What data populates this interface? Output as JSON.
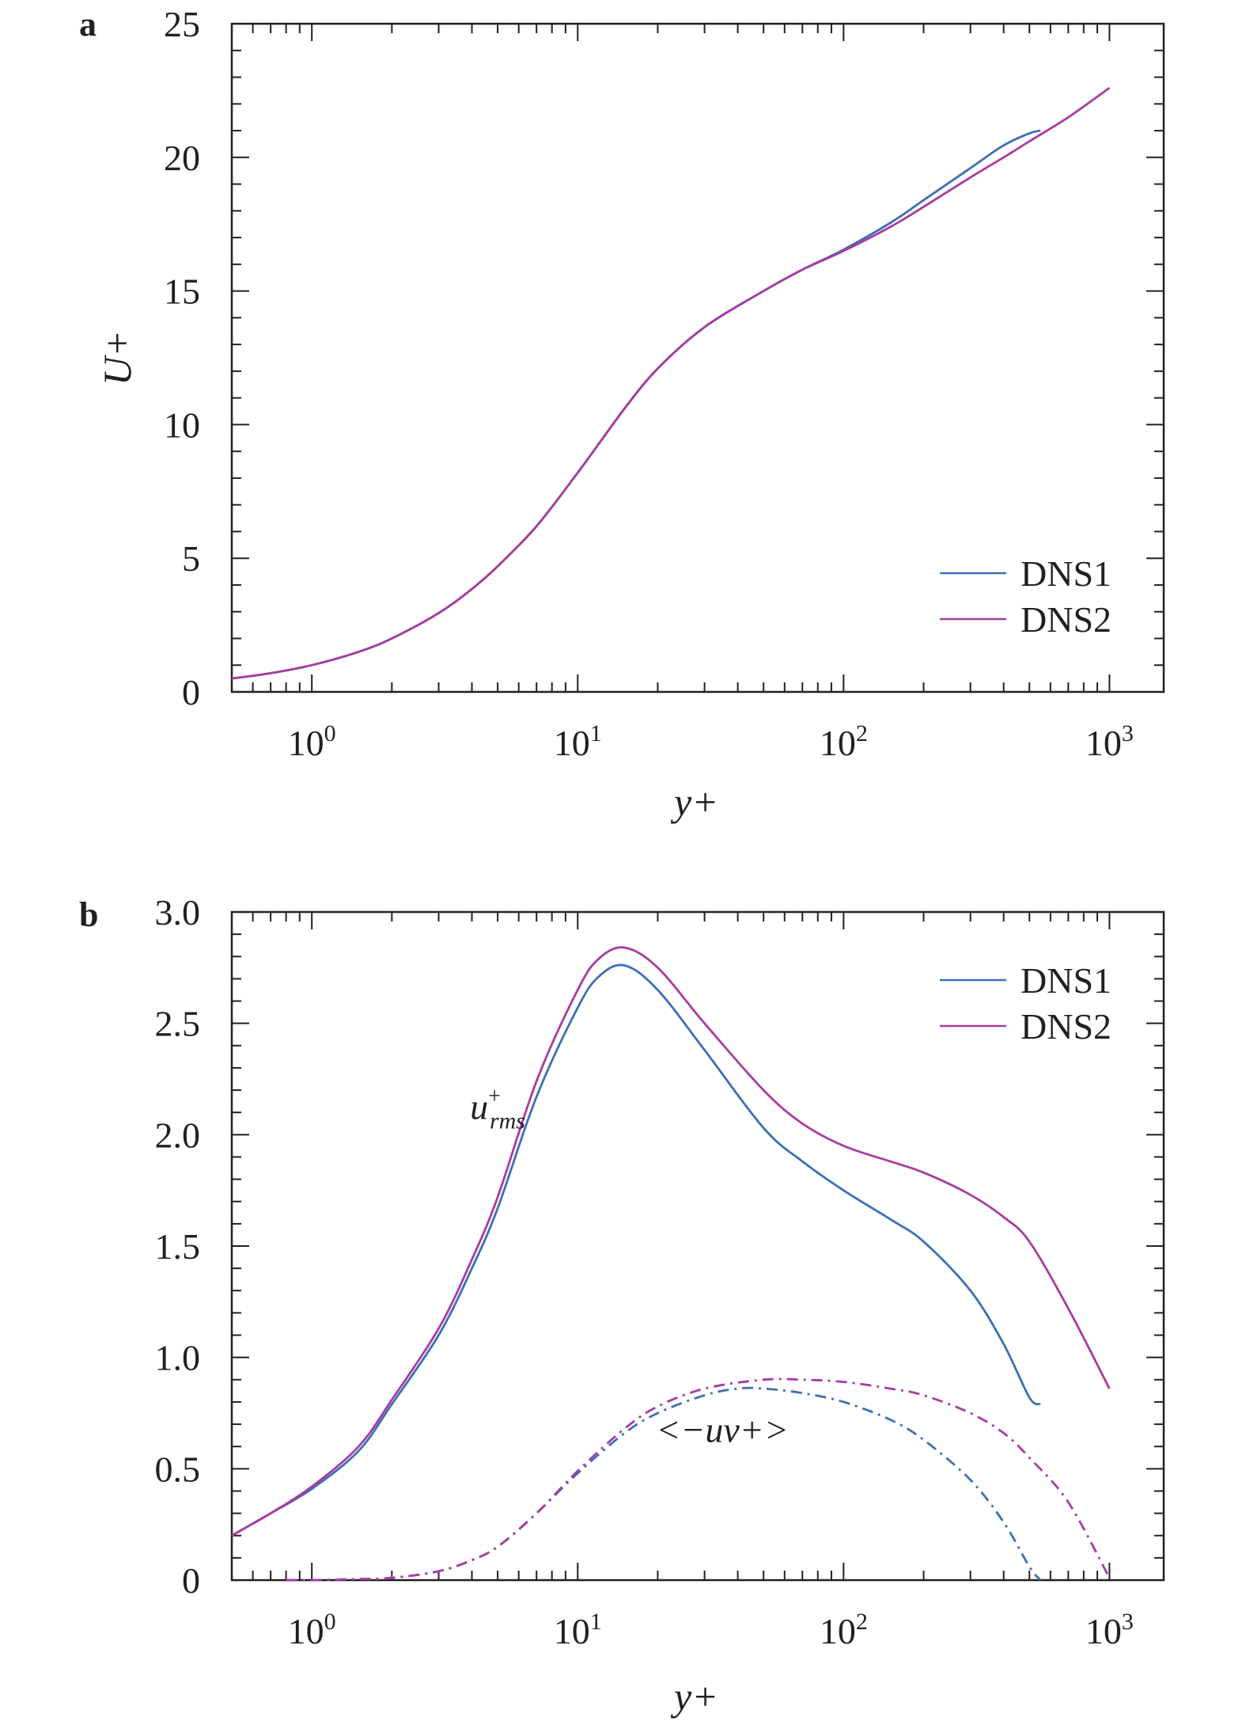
{
  "chart_data": [
    {
      "panel": "a",
      "type": "line",
      "ylabel": "U+",
      "xlabel": "y+",
      "xscale": "log",
      "xlim": [
        0.5,
        1600
      ],
      "ylim": [
        0,
        25
      ],
      "xticks": [
        {
          "value": 1,
          "base": "10",
          "exp": "0"
        },
        {
          "value": 10,
          "base": "10",
          "exp": "1"
        },
        {
          "value": 100,
          "base": "10",
          "exp": "2"
        },
        {
          "value": 1000,
          "base": "10",
          "exp": "3"
        }
      ],
      "yticks": [
        0,
        5,
        10,
        15,
        20,
        25
      ],
      "ytick_labels": [
        "0",
        "5",
        "10",
        "15",
        "20",
        "25"
      ],
      "legend": {
        "position": "lower-right"
      },
      "series": [
        {
          "name": "DNS1",
          "color": "#3d6fb4",
          "style": "solid",
          "x": [
            0.5,
            0.7,
            1,
            1.5,
            2,
            3,
            4,
            5,
            7,
            10,
            15,
            20,
            30,
            50,
            70,
            100,
            150,
            200,
            300,
            400,
            500,
            550
          ],
          "y": [
            0.5,
            0.7,
            1.0,
            1.5,
            2.0,
            2.95,
            3.85,
            4.7,
            6.2,
            8.2,
            10.6,
            12.1,
            13.65,
            15.0,
            15.8,
            16.55,
            17.55,
            18.4,
            19.6,
            20.45,
            20.9,
            21.0
          ]
        },
        {
          "name": "DNS2",
          "color": "#a83ba0",
          "style": "solid",
          "x": [
            0.5,
            0.7,
            1,
            1.5,
            2,
            3,
            4,
            5,
            7,
            10,
            15,
            20,
            30,
            50,
            70,
            100,
            150,
            200,
            300,
            400,
            500,
            700,
            1000
          ],
          "y": [
            0.5,
            0.7,
            1.0,
            1.5,
            2.0,
            2.95,
            3.85,
            4.7,
            6.2,
            8.2,
            10.6,
            12.1,
            13.65,
            15.0,
            15.8,
            16.5,
            17.4,
            18.15,
            19.25,
            20.0,
            20.6,
            21.5,
            22.6
          ]
        }
      ]
    },
    {
      "panel": "b",
      "type": "line",
      "xlabel": "y+",
      "ylabel": "",
      "xscale": "log",
      "xlim": [
        0.5,
        1600
      ],
      "ylim": [
        0,
        3.0
      ],
      "xticks": [
        {
          "value": 1,
          "base": "10",
          "exp": "0"
        },
        {
          "value": 10,
          "base": "10",
          "exp": "1"
        },
        {
          "value": 100,
          "base": "10",
          "exp": "2"
        },
        {
          "value": 1000,
          "base": "10",
          "exp": "3"
        }
      ],
      "yticks": [
        0,
        0.5,
        1.0,
        1.5,
        2.0,
        2.5,
        3.0
      ],
      "ytick_labels": [
        "0",
        "0.5",
        "1.0",
        "1.5",
        "2.0",
        "2.5",
        "3.0"
      ],
      "legend": {
        "position": "top-right"
      },
      "annotations": [
        {
          "text": "u",
          "superscript": "+",
          "subscript": "rms",
          "x": 5.0,
          "y": 2.07
        },
        {
          "text": "<−uv+>",
          "x": 35,
          "y": 0.62
        }
      ],
      "series": [
        {
          "name": "DNS1",
          "color": "#3d6fb4",
          "style": "solid",
          "x": [
            0.5,
            0.7,
            1,
            1.5,
            2,
            3,
            4,
            5,
            7,
            10,
            12,
            15,
            20,
            30,
            50,
            70,
            100,
            150,
            200,
            300,
            400,
            500,
            550
          ],
          "y": [
            0.2,
            0.3,
            0.41,
            0.58,
            0.79,
            1.1,
            1.4,
            1.67,
            2.17,
            2.57,
            2.71,
            2.76,
            2.65,
            2.38,
            2.03,
            1.88,
            1.75,
            1.62,
            1.52,
            1.3,
            1.06,
            0.82,
            0.79
          ]
        },
        {
          "name": "DNS2",
          "color": "#a83ba0",
          "style": "solid",
          "x": [
            0.5,
            0.7,
            1,
            1.5,
            2,
            3,
            4,
            5,
            7,
            10,
            12,
            15,
            20,
            30,
            50,
            70,
            100,
            150,
            200,
            300,
            400,
            500,
            700,
            1000
          ],
          "y": [
            0.2,
            0.3,
            0.42,
            0.6,
            0.81,
            1.13,
            1.44,
            1.72,
            2.24,
            2.65,
            2.79,
            2.84,
            2.75,
            2.5,
            2.2,
            2.05,
            1.95,
            1.88,
            1.83,
            1.73,
            1.63,
            1.52,
            1.22,
            0.86
          ]
        },
        {
          "name": "DNS1",
          "color": "#3d6fb4",
          "style": "dashdot",
          "x": [
            0.8,
            1,
            1.5,
            2,
            3,
            4,
            5,
            7,
            10,
            15,
            20,
            30,
            40,
            50,
            70,
            100,
            150,
            200,
            300,
            400,
            500,
            550
          ],
          "y": [
            0.0,
            0.0,
            0.005,
            0.01,
            0.04,
            0.09,
            0.15,
            0.3,
            0.48,
            0.66,
            0.75,
            0.83,
            0.86,
            0.86,
            0.84,
            0.8,
            0.72,
            0.63,
            0.45,
            0.26,
            0.06,
            0.0
          ]
        },
        {
          "name": "DNS2",
          "color": "#a83ba0",
          "style": "dashdot",
          "x": [
            0.8,
            1,
            1.5,
            2,
            3,
            4,
            5,
            7,
            10,
            15,
            20,
            30,
            50,
            70,
            100,
            150,
            200,
            300,
            400,
            500,
            700,
            1000
          ],
          "y": [
            0.0,
            0.0,
            0.005,
            0.01,
            0.04,
            0.09,
            0.15,
            0.3,
            0.49,
            0.68,
            0.78,
            0.86,
            0.9,
            0.9,
            0.89,
            0.86,
            0.83,
            0.75,
            0.66,
            0.55,
            0.35,
            0.01
          ]
        }
      ]
    }
  ]
}
